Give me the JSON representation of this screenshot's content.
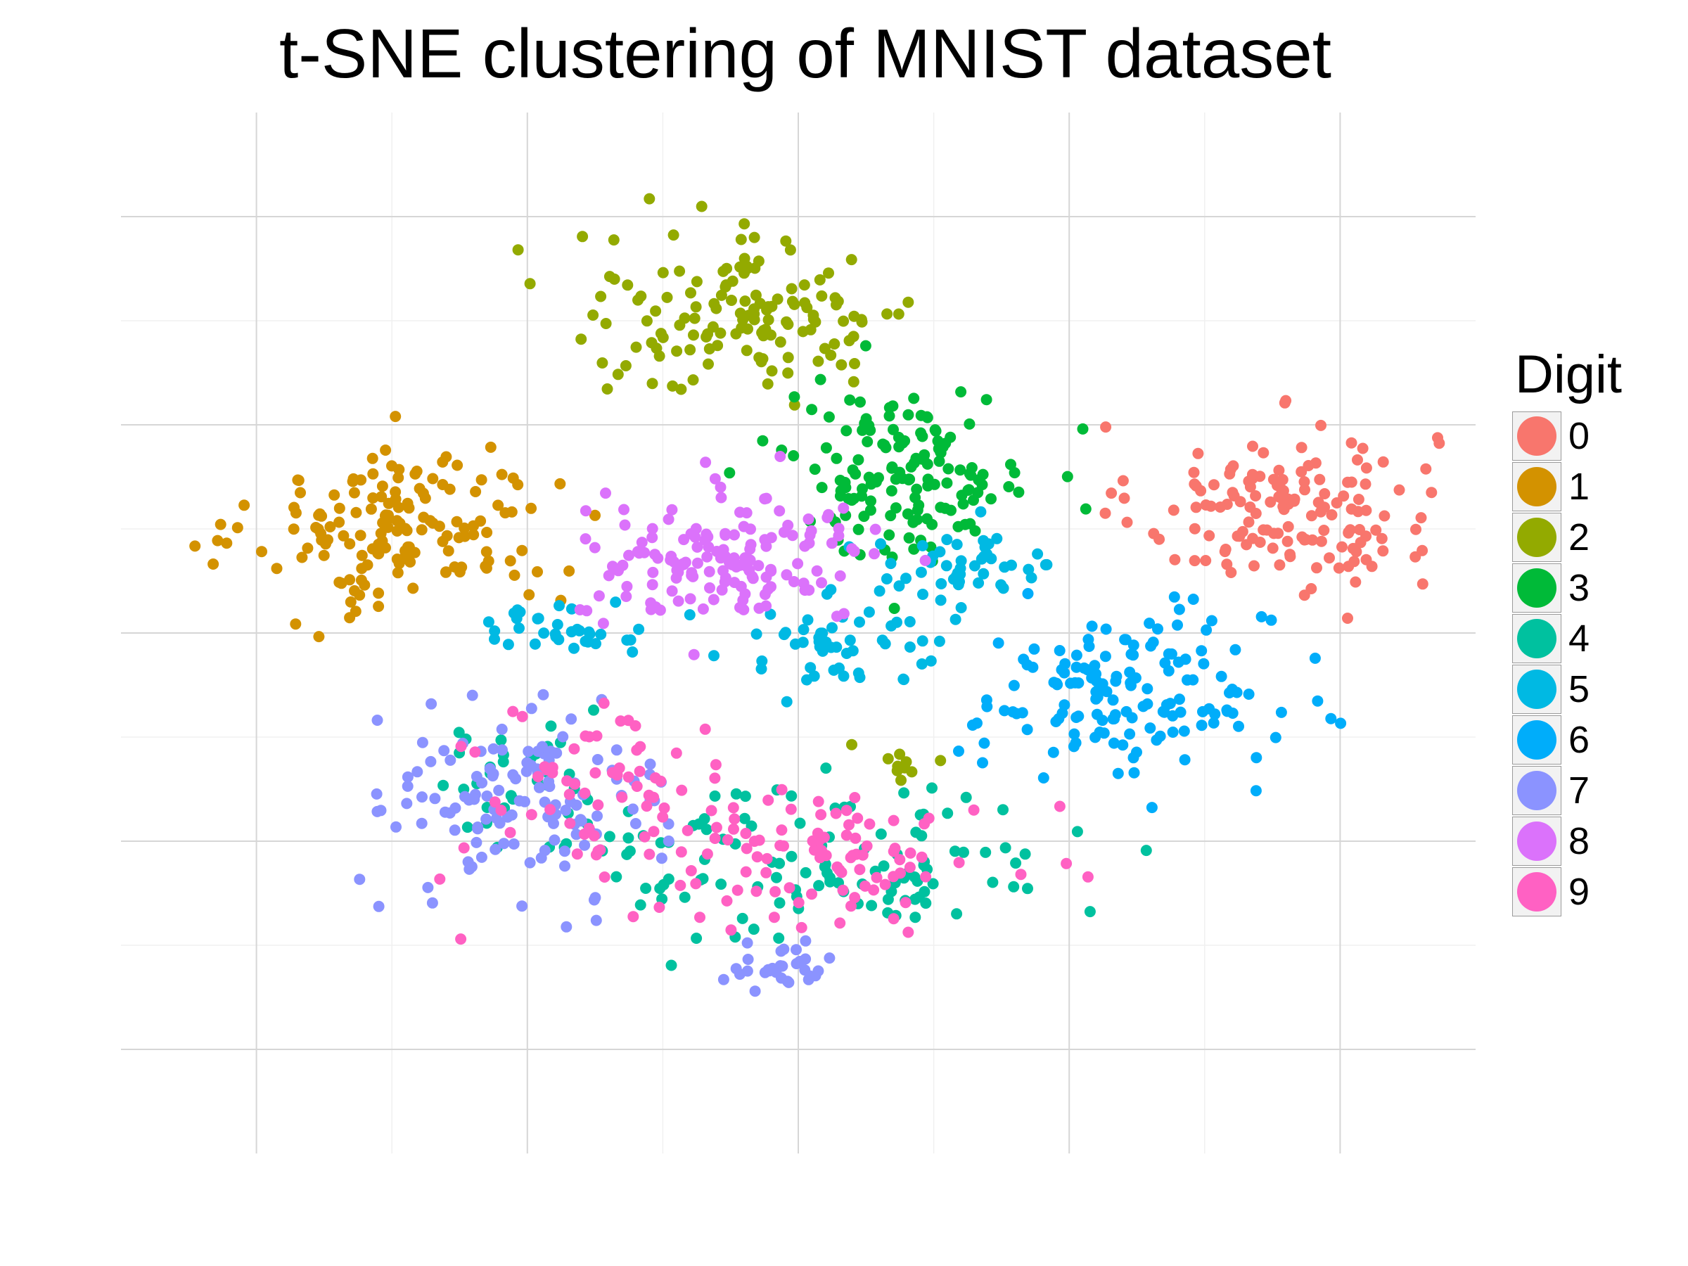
{
  "chart_data": {
    "type": "scatter",
    "title": "t-SNE clustering of MNIST dataset",
    "xlabel": "",
    "ylabel": "",
    "xlim": [
      -50,
      50
    ],
    "ylim": [
      -50,
      50
    ],
    "grid": true,
    "axis_ticks_shown": false,
    "legend": {
      "title": "Digit",
      "placement": "right",
      "entries": [
        "0",
        "1",
        "2",
        "3",
        "4",
        "5",
        "6",
        "7",
        "8",
        "9"
      ]
    },
    "series": [
      {
        "label": "0",
        "color": "#F8766D",
        "clusters": [
          {
            "cx": 36.0,
            "cy": 12.0,
            "sx": 5.5,
            "sy": 4.0,
            "n": 150
          }
        ]
      },
      {
        "label": "1",
        "color": "#D39200",
        "clusters": [
          {
            "cx": -29.0,
            "cy": 10.0,
            "sx": 5.5,
            "sy": 4.0,
            "n": 160
          }
        ]
      },
      {
        "label": "2",
        "color": "#93AA00",
        "clusters": [
          {
            "cx": -4.0,
            "cy": 30.5,
            "sx": 6.5,
            "sy": 4.0,
            "n": 140
          },
          {
            "cx": 8.0,
            "cy": -12.0,
            "sx": 1.5,
            "sy": 1.2,
            "n": 10
          }
        ]
      },
      {
        "label": "3",
        "color": "#00BA38",
        "clusters": [
          {
            "cx": 8.0,
            "cy": 15.5,
            "sx": 4.5,
            "sy": 4.0,
            "n": 150
          }
        ]
      },
      {
        "label": "4",
        "color": "#00C19F",
        "clusters": [
          {
            "cx": -20.0,
            "cy": -15.0,
            "sx": 3.5,
            "sy": 3.0,
            "n": 40
          },
          {
            "cx": 3.0,
            "cy": -22.0,
            "sx": 8.0,
            "sy": 4.0,
            "n": 110
          }
        ]
      },
      {
        "label": "5",
        "color": "#00B9E3",
        "clusters": [
          {
            "cx": -17.0,
            "cy": 0.5,
            "sx": 4.0,
            "sy": 1.2,
            "n": 35
          },
          {
            "cx": 3.0,
            "cy": -1.0,
            "sx": 4.0,
            "sy": 2.0,
            "n": 50
          },
          {
            "cx": 12.0,
            "cy": 6.0,
            "sx": 4.0,
            "sy": 2.0,
            "n": 50
          }
        ]
      },
      {
        "label": "6",
        "color": "#00ADFA",
        "clusters": [
          {
            "cx": 24.0,
            "cy": -6.0,
            "sx": 5.5,
            "sy": 4.0,
            "n": 150
          }
        ]
      },
      {
        "label": "7",
        "color": "#8B93FF",
        "clusters": [
          {
            "cx": -20.0,
            "cy": -16.0,
            "sx": 5.0,
            "sy": 4.5,
            "n": 130
          },
          {
            "cx": -1.5,
            "cy": -32.0,
            "sx": 2.0,
            "sy": 1.0,
            "n": 30
          }
        ]
      },
      {
        "label": "8",
        "color": "#DB72FB",
        "clusters": [
          {
            "cx": -5.0,
            "cy": 7.0,
            "sx": 5.5,
            "sy": 3.0,
            "n": 150
          }
        ]
      },
      {
        "label": "9",
        "color": "#FF61C3",
        "clusters": [
          {
            "cx": -15.0,
            "cy": -15.0,
            "sx": 5.0,
            "sy": 4.0,
            "n": 60
          },
          {
            "cx": 2.5,
            "cy": -21.0,
            "sx": 7.0,
            "sy": 3.0,
            "n": 100
          }
        ]
      }
    ]
  },
  "legend_title": "Digit"
}
